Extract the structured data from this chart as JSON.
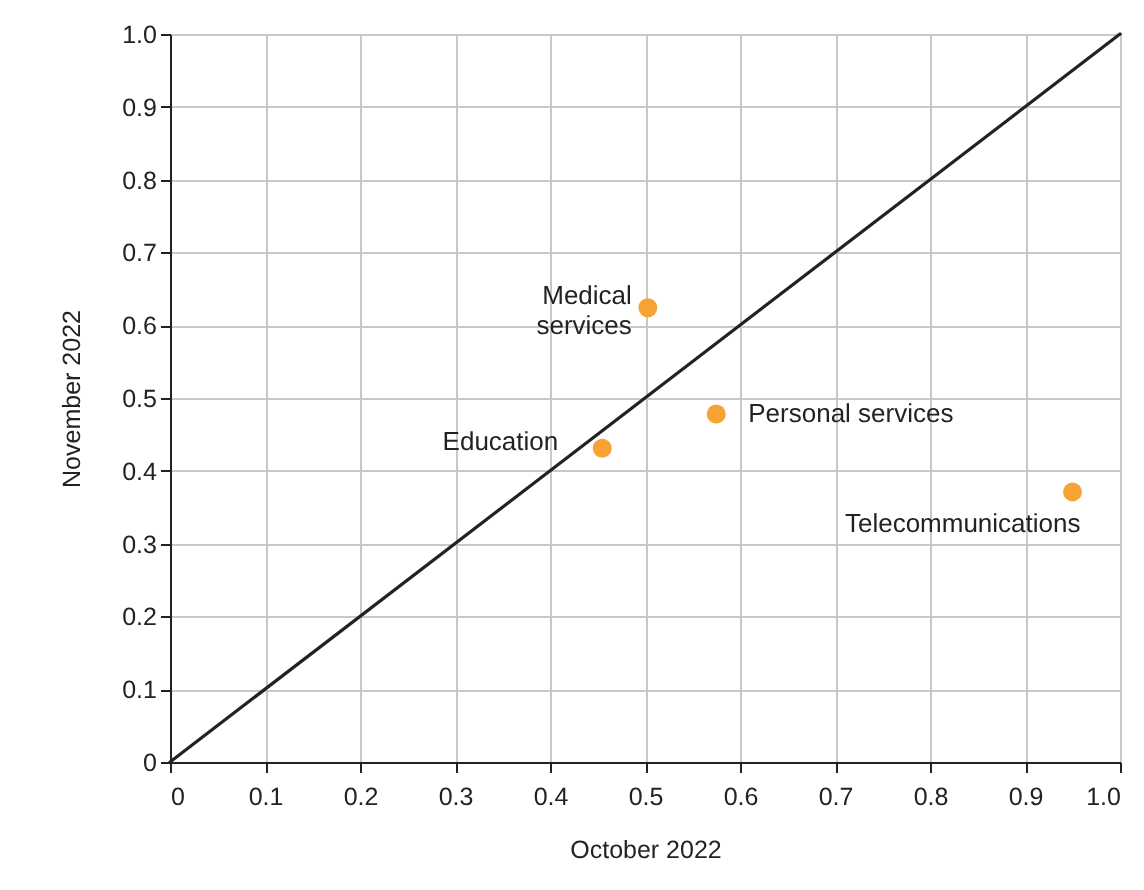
{
  "chart_data": {
    "type": "scatter",
    "xlabel": "October 2022",
    "ylabel": "November 2022",
    "xlim": [
      0,
      1
    ],
    "ylim": [
      0,
      1
    ],
    "xticks": [
      0,
      0.1,
      0.2,
      0.3,
      0.4,
      0.5,
      0.6,
      0.7,
      0.8,
      0.9,
      {
        "value": 1,
        "label": "1.0"
      }
    ],
    "yticks": [
      0,
      0.1,
      0.2,
      0.3,
      0.4,
      0.5,
      0.6,
      0.7,
      0.8,
      0.9,
      {
        "value": 1,
        "label": "1.0"
      }
    ],
    "grid": true,
    "marker": "circle",
    "series": [
      {
        "color": "#f7a234",
        "x": [
          0.503,
          0.575,
          0.455,
          0.95
        ],
        "values": [
          0.624,
          0.478,
          0.431,
          0.371
        ]
      },
      {
        "type": "line",
        "color": "#222222",
        "x": [
          0,
          1
        ],
        "values": [
          0,
          1
        ],
        "line_style": "solid",
        "marker": "none"
      }
    ],
    "annotations": [
      {
        "text": "Medical\nservices",
        "x": 0.503,
        "y": 0.624
      },
      {
        "text": "Personal services",
        "x": 0.575,
        "y": 0.478
      },
      {
        "text": "Education",
        "x": 0.455,
        "y": 0.431
      },
      {
        "text": "Telecommunications",
        "x": 0.95,
        "y": 0.371
      }
    ]
  }
}
